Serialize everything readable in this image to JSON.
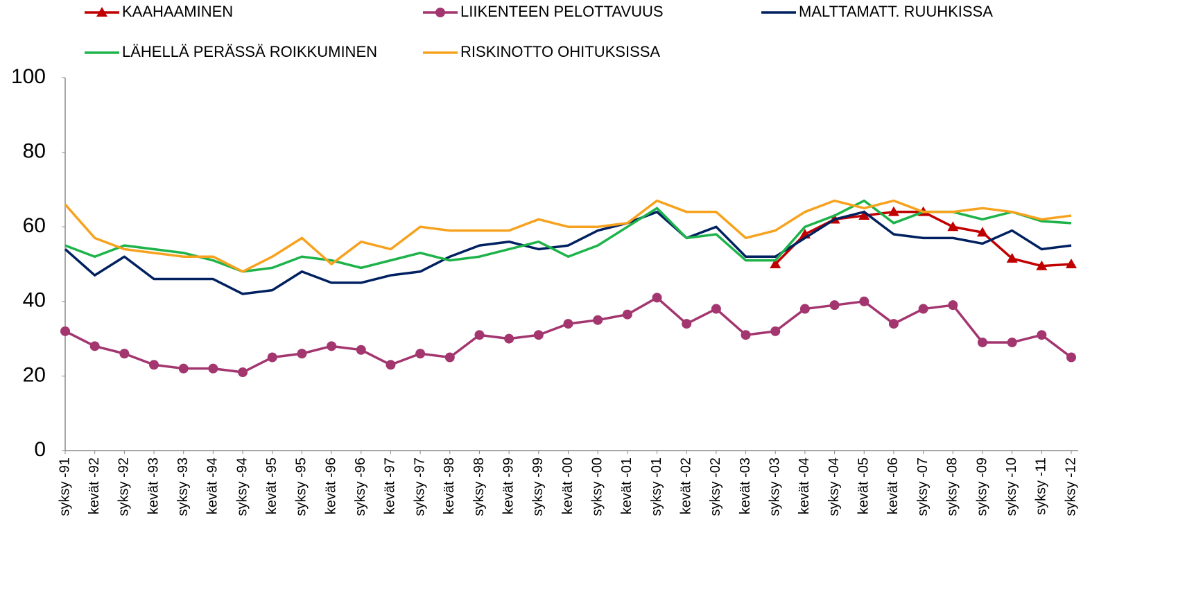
{
  "chart_data": {
    "type": "line",
    "categories": [
      "syksy -91",
      "kevät -92",
      "syksy -92",
      "kevät -93",
      "syksy -93",
      "kevät -94",
      "syksy -94",
      "kevät -95",
      "syksy -95",
      "kevät -96",
      "syksy -96",
      "kevät -97",
      "syksy -97",
      "kevät -98",
      "syksy -98",
      "kevät -99",
      "syksy -99",
      "kevät -00",
      "syksy -00",
      "kevät -01",
      "syksy -01",
      "kevät -02",
      "syksy -02",
      "kevät -03",
      "syksy -03",
      "kevät -04",
      "syksy -04",
      "kevät -05",
      "kevät -06",
      "syksy -07",
      "syksy -08",
      "syksy -09",
      "syksy -10",
      "syksy -11",
      "syksy -12"
    ],
    "series": [
      {
        "name": "KAAHAAMINEN",
        "color": "#c00000",
        "marker": "triangle",
        "values": [
          null,
          null,
          null,
          null,
          null,
          null,
          null,
          null,
          null,
          null,
          null,
          null,
          null,
          null,
          null,
          null,
          null,
          null,
          null,
          null,
          null,
          null,
          null,
          null,
          50,
          58,
          62,
          63,
          64,
          64,
          60,
          58.5,
          51.5,
          49.5,
          50
        ]
      },
      {
        "name": "LIIKENTEEN PELOTTAVUUS",
        "color": "#a3356f",
        "marker": "circle",
        "values": [
          32,
          28,
          26,
          23,
          22,
          22,
          21,
          25,
          26,
          28,
          27,
          23,
          26,
          25,
          31,
          30,
          31,
          34,
          35,
          36.5,
          41,
          34,
          38,
          31,
          32,
          38,
          39,
          40,
          34,
          38,
          39,
          29,
          29,
          31,
          25
        ]
      },
      {
        "name": "MALTTAMATT. RUUHKISSA",
        "color": "#002060",
        "values": [
          54,
          47,
          52,
          46,
          46,
          46,
          42,
          43,
          48,
          45,
          45,
          47,
          48,
          52,
          55,
          56,
          54,
          55,
          59,
          61,
          64,
          57,
          60,
          52,
          52,
          57,
          62,
          64,
          58,
          57,
          57,
          55.5,
          59,
          54,
          55
        ]
      },
      {
        "name": "LÄHELLÄ PERÄSSÄ ROIKKUMINEN",
        "color": "#1db34a",
        "values": [
          55,
          52,
          55,
          54,
          53,
          51,
          48,
          49,
          52,
          51,
          49,
          51,
          53,
          51,
          52,
          54,
          56,
          52,
          55,
          60,
          65,
          57,
          58,
          51,
          51,
          60,
          63,
          67,
          61,
          64,
          64,
          62,
          64,
          61.5,
          61
        ]
      },
      {
        "name": "RISKINOTTO OHITUKSISSA",
        "color": "#f7a21e",
        "values": [
          66,
          57,
          54,
          53,
          52,
          52,
          48,
          52,
          57,
          50,
          56,
          54,
          60,
          59,
          59,
          59,
          62,
          60,
          60,
          61,
          67,
          64,
          64,
          57,
          59,
          64,
          67,
          65,
          67,
          64,
          64,
          65,
          64,
          62,
          63
        ]
      }
    ],
    "ylim": [
      0,
      100
    ],
    "yticks": [
      0,
      20,
      40,
      60,
      80,
      100
    ]
  }
}
